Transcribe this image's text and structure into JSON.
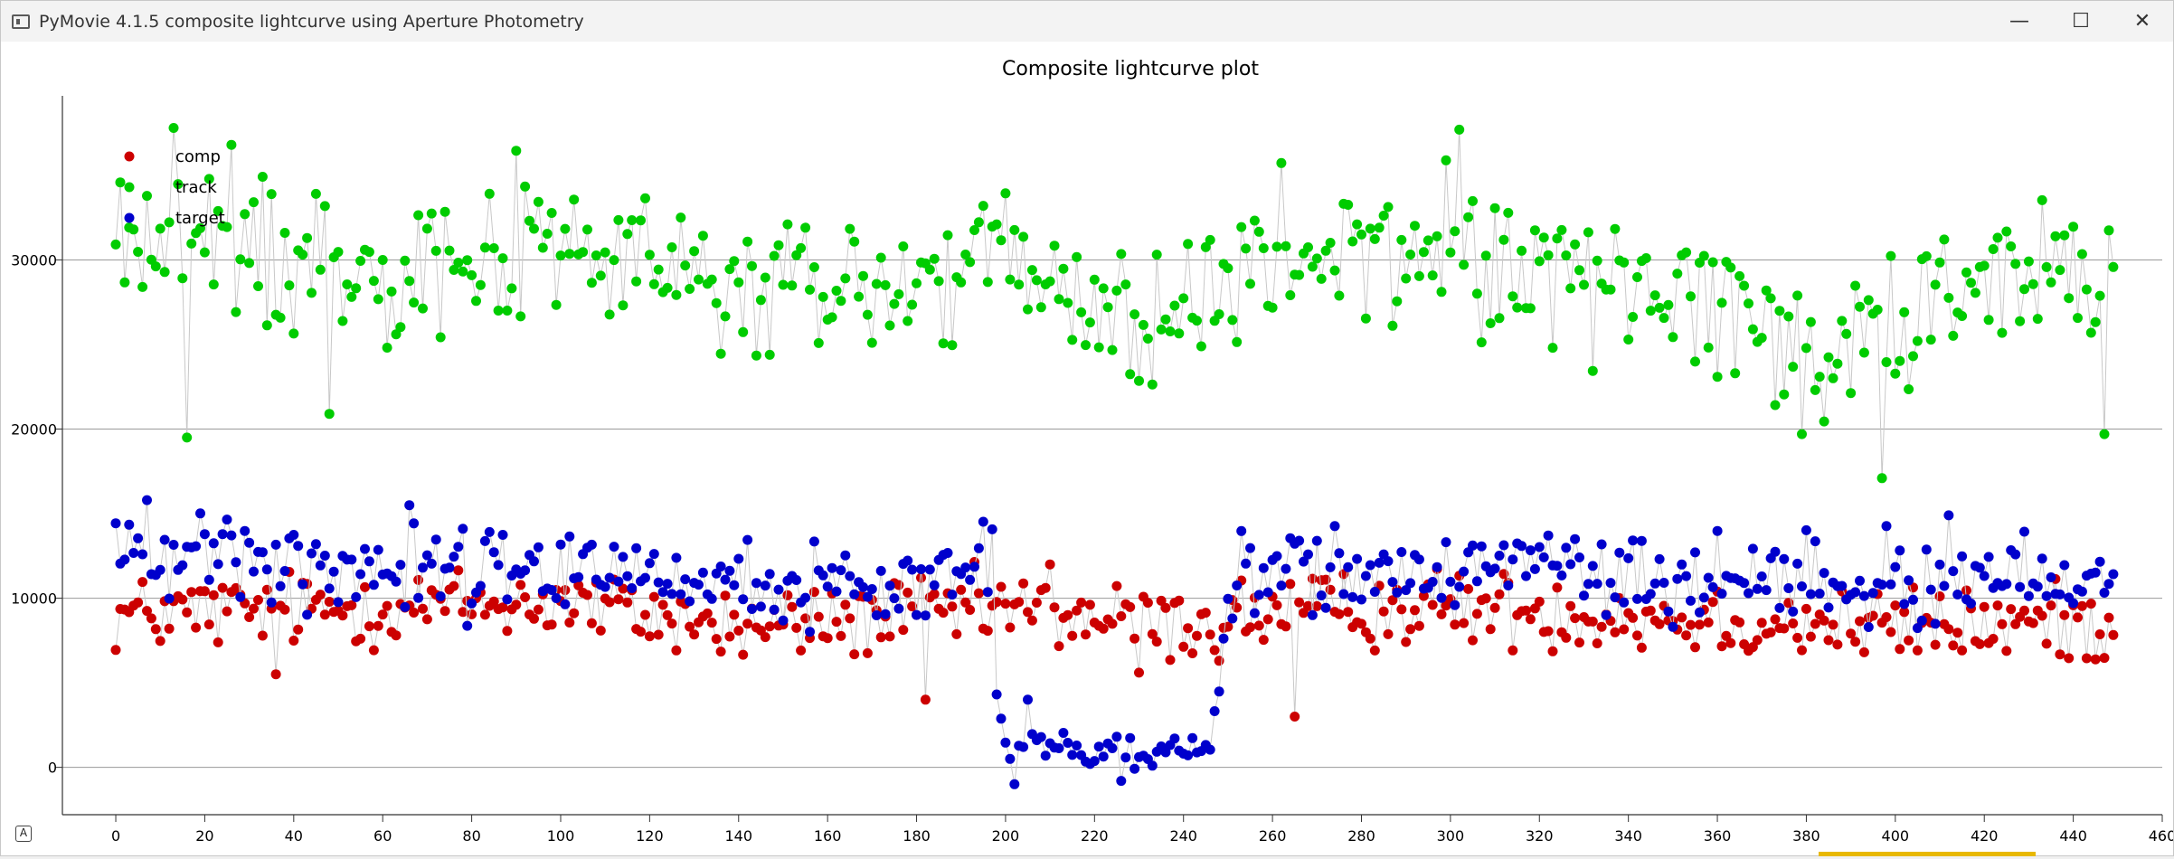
{
  "window": {
    "title": "PyMovie 4.1.5 composite lightcurve using Aperture Photometry",
    "controls": {
      "minimize": "—",
      "maximize": "☐",
      "close": "✕"
    }
  },
  "auto_range_label": "A",
  "chart_data": {
    "type": "scatter",
    "title": "Composite lightcurve plot",
    "xlabel": "",
    "ylabel": "",
    "xlim": [
      -12,
      460
    ],
    "ylim": [
      -2800,
      39700
    ],
    "xticks": [
      0,
      20,
      40,
      60,
      80,
      100,
      120,
      140,
      160,
      180,
      200,
      220,
      240,
      260,
      280,
      300,
      320,
      340,
      360,
      380,
      400,
      420,
      440,
      460
    ],
    "yticks": [
      0,
      10000,
      20000,
      30000
    ],
    "grid": "horizontal",
    "legend_position": "top-left",
    "connecting_lines": true,
    "x_range": [
      0,
      449
    ],
    "series": [
      {
        "name": "comp",
        "color": "#cc0000",
        "description": "fairly flat around 9000 with scatter ±2500",
        "anchors": [
          [
            0,
            9000
          ],
          [
            100,
            9800
          ],
          [
            140,
            8200
          ],
          [
            200,
            9400
          ],
          [
            240,
            8300
          ],
          [
            250,
            9000
          ],
          [
            300,
            9500
          ],
          [
            360,
            8700
          ],
          [
            400,
            8300
          ],
          [
            449,
            8600
          ]
        ],
        "noise": 1600,
        "outliers": [
          [
            36,
            5500
          ],
          [
            248,
            6300
          ],
          [
            265,
            3000
          ],
          [
            182,
            4000
          ],
          [
            210,
            12000
          ],
          [
            230,
            5600
          ]
        ]
      },
      {
        "name": "track",
        "color": "#00cc00",
        "description": "noisy around 29000 with dips near frame 215 and 380",
        "anchors": [
          [
            0,
            31500
          ],
          [
            20,
            30500
          ],
          [
            60,
            30000
          ],
          [
            100,
            31000
          ],
          [
            140,
            28000
          ],
          [
            180,
            28500
          ],
          [
            200,
            30000
          ],
          [
            215,
            27000
          ],
          [
            240,
            26500
          ],
          [
            260,
            30000
          ],
          [
            300,
            30500
          ],
          [
            340,
            28500
          ],
          [
            370,
            27000
          ],
          [
            380,
            23500
          ],
          [
            400,
            27500
          ],
          [
            449,
            29500
          ]
        ],
        "noise": 3200,
        "outliers": [
          [
            302,
            37700
          ],
          [
            13,
            37800
          ],
          [
            26,
            36800
          ],
          [
            397,
            17100
          ],
          [
            16,
            19500
          ],
          [
            379,
            19700
          ],
          [
            447,
            19700
          ],
          [
            48,
            20900
          ]
        ]
      },
      {
        "name": "target",
        "color": "#0000cc",
        "description": "around 11500 with an occultation drop to ~1000 between frames 199 and 247",
        "anchors": [
          [
            0,
            13000
          ],
          [
            50,
            12000
          ],
          [
            100,
            12000
          ],
          [
            140,
            10500
          ],
          [
            180,
            11000
          ],
          [
            197,
            12500
          ],
          [
            198,
            4300
          ],
          [
            200,
            1500
          ],
          [
            225,
            800
          ],
          [
            246,
            1200
          ],
          [
            249,
            8000
          ],
          [
            252,
            12000
          ],
          [
            300,
            11500
          ],
          [
            360,
            11000
          ],
          [
            400,
            11000
          ],
          [
            449,
            11200
          ]
        ],
        "noise": 1800,
        "outliers": [
          [
            202,
            -1000
          ],
          [
            205,
            4000
          ],
          [
            226,
            -800
          ],
          [
            66,
            15500
          ],
          [
            7,
            15800
          ],
          [
            412,
            14900
          ]
        ]
      }
    ]
  }
}
